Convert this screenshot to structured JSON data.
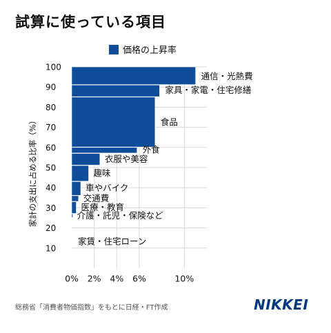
{
  "title": "試算に使っている項目",
  "legend": {
    "label": "価格の上昇率",
    "color": "#0f4c9a"
  },
  "footer_note": "総務省「消費者物価指数」をもとに日経・FT作成",
  "brand": "NIKKEI",
  "chart_data": {
    "type": "bar",
    "title": "試算に使っている項目",
    "series": [
      {
        "name": "価格の上昇率",
        "color": "#0f4c9a"
      }
    ],
    "ylabel": "家計の支出に占める比率（%）",
    "xlabel": "",
    "xlim": [
      0,
      12
    ],
    "ylim": [
      0,
      100
    ],
    "x_ticks": [
      "0%",
      "2%",
      "4%",
      "6%",
      "10%"
    ],
    "y_ticks": [
      "100",
      "90",
      "80",
      "70",
      "60",
      "50",
      "40",
      "30",
      "20",
      "10"
    ],
    "grid": true,
    "legend_position": "top",
    "categories": [
      "通信・光熱費",
      "家具・家電・住宅修繕",
      "食品",
      "外食",
      "衣服や美容",
      "趣味",
      "車やバイク",
      "交通費",
      "医療・教育",
      "介護・託児・保険など",
      "家賃・住宅ローン"
    ],
    "rate_pct": [
      11.0,
      7.8,
      7.4,
      5.8,
      2.5,
      1.5,
      0.8,
      0.6,
      0.4,
      0.1,
      0.0
    ],
    "cum_start_pct": [
      91.0,
      85.0,
      60.0,
      57.0,
      51.0,
      43.0,
      36.0,
      33.0,
      27.0,
      25.0,
      0.0
    ],
    "cum_end_pct": [
      100.0,
      91.0,
      85.0,
      60.0,
      57.0,
      51.0,
      43.0,
      36.0,
      33.0,
      27.0,
      25.0
    ]
  }
}
